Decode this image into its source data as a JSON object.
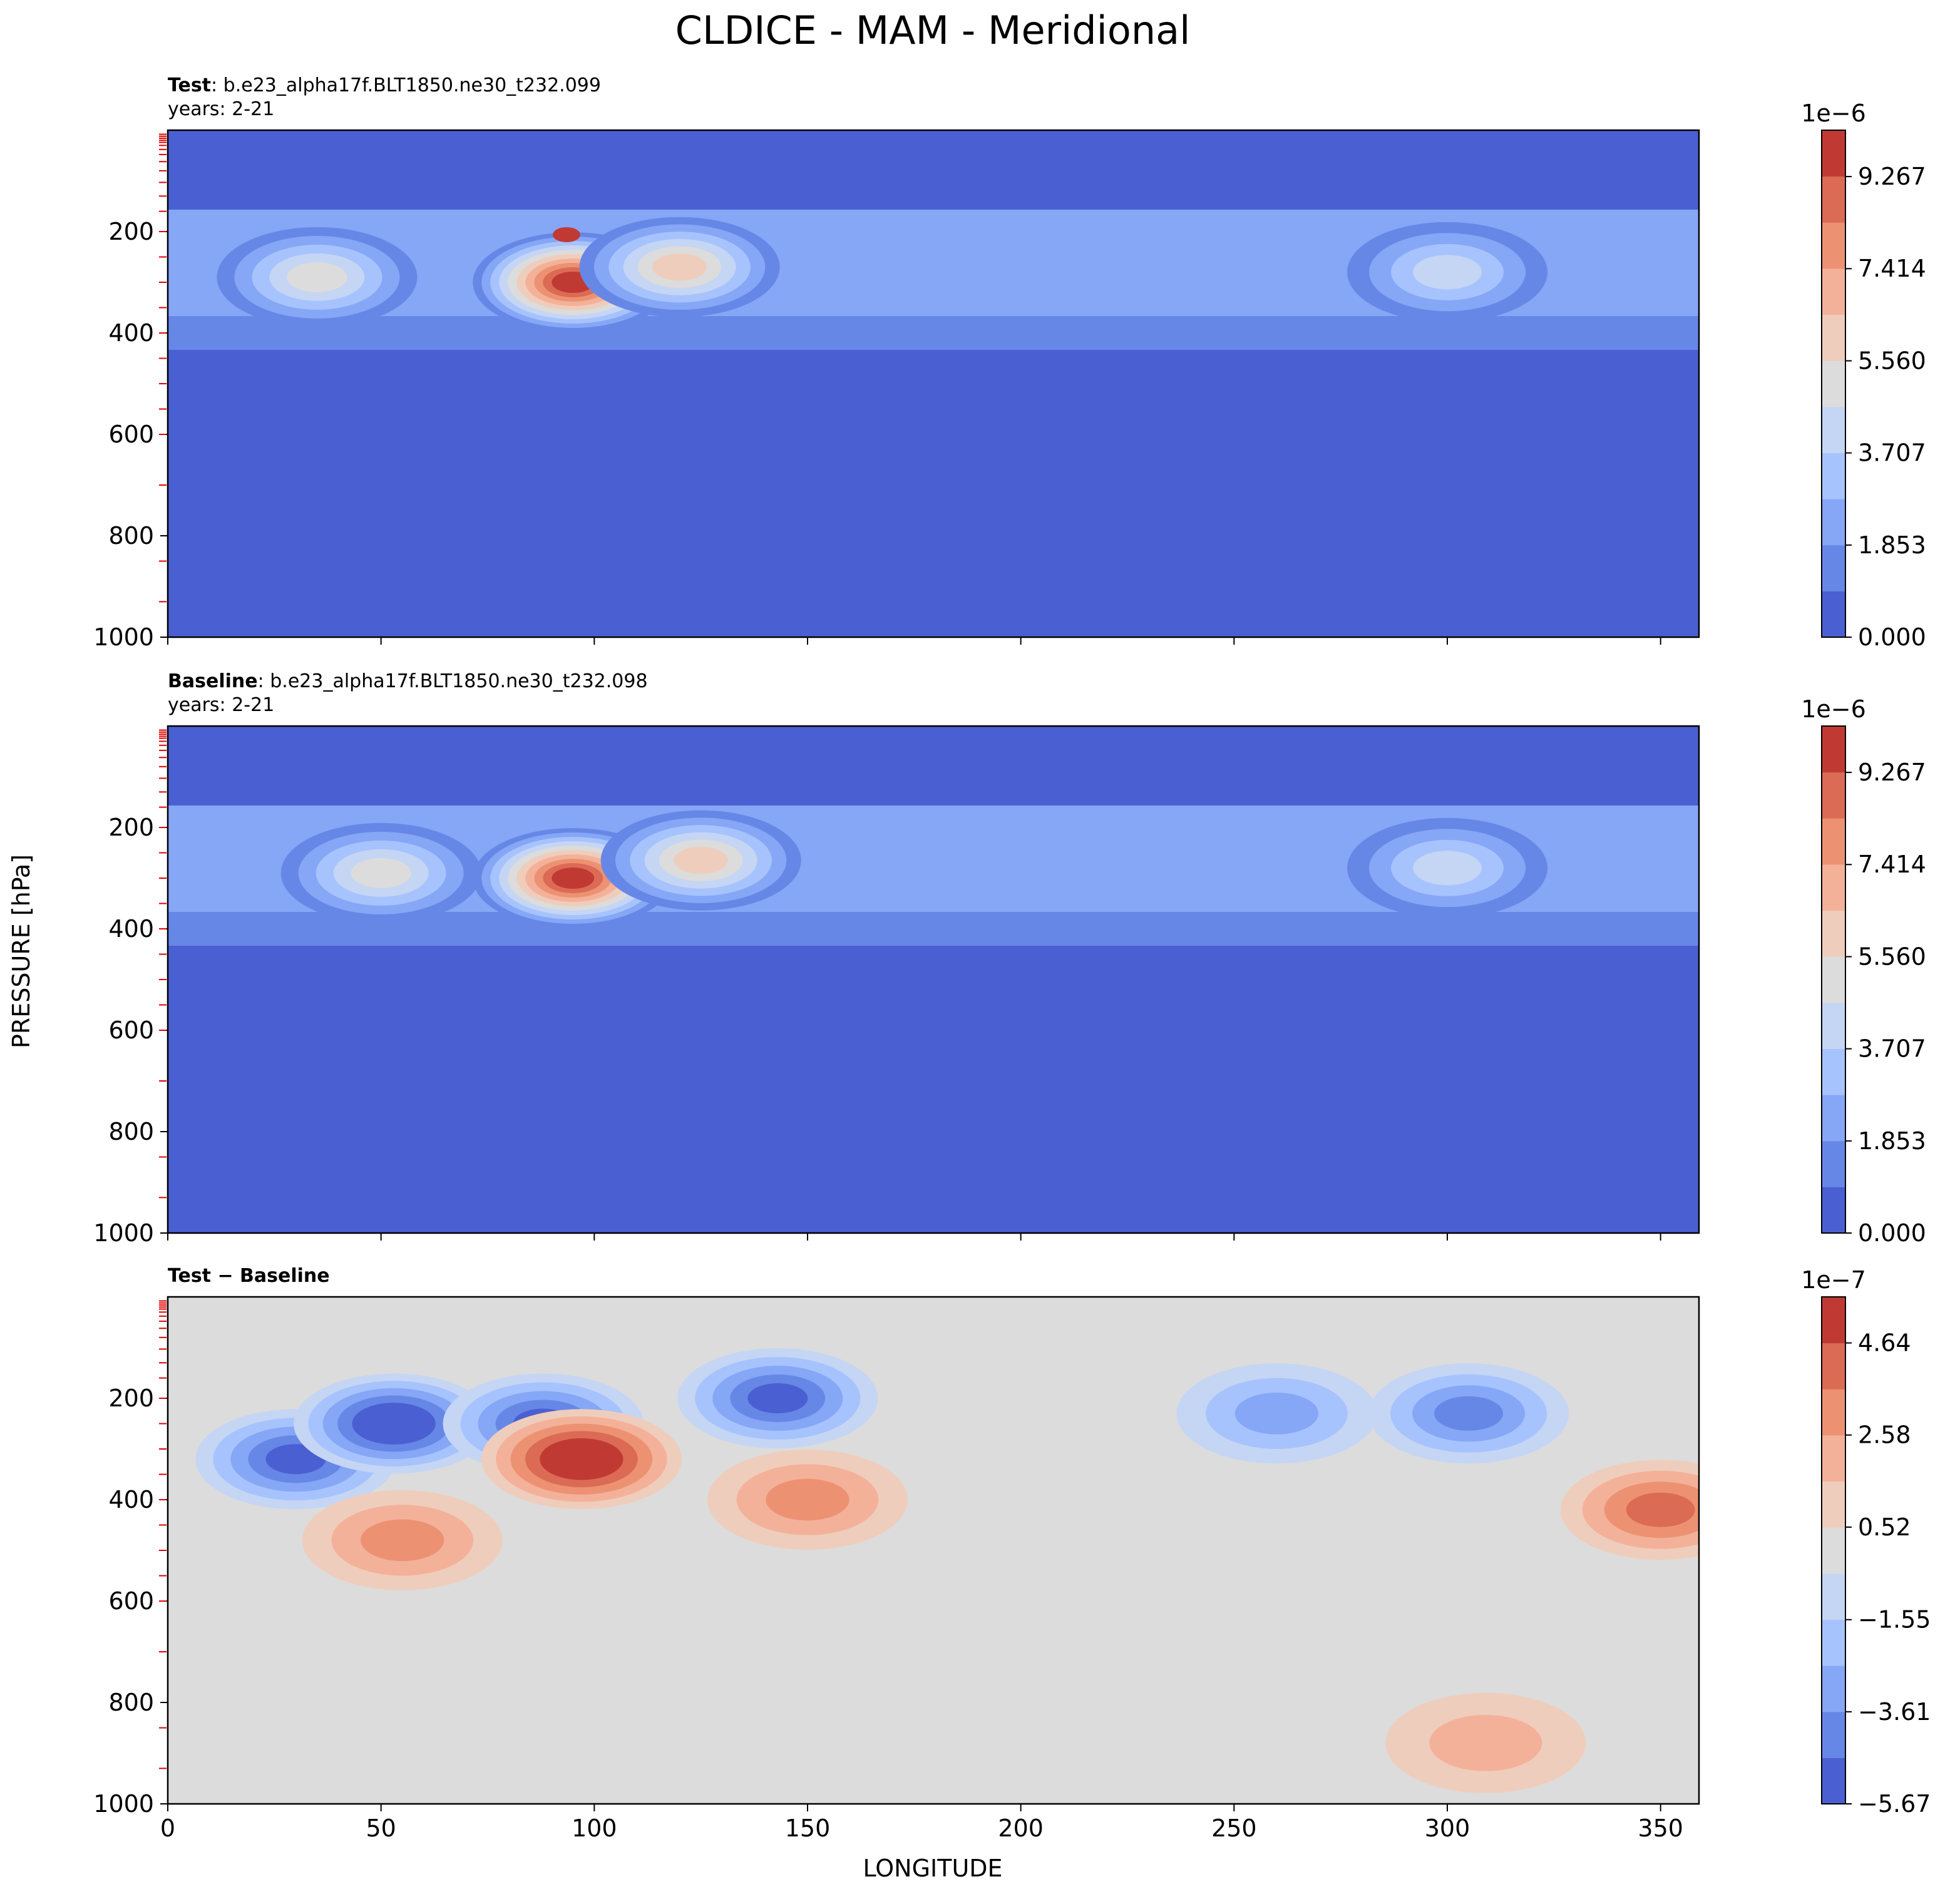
{
  "figure": {
    "title": "CLDICE - MAM - Meridional",
    "ylabel": "PRESSURE [hPa]",
    "xlabel": "LONGITUDE"
  },
  "chart_data": [
    {
      "type": "heatmap",
      "label_bold": "Test",
      "label_rest": ": b.e23_alpha17f.BLT1850.ne30_t232.099",
      "years": "years: 2-21",
      "xlim": [
        0,
        359
      ],
      "ylim": [
        1000,
        0
      ],
      "x_ticks": [
        0,
        50,
        100,
        150,
        200,
        250,
        300,
        350
      ],
      "y_ticks": [
        "200",
        "400",
        "600",
        "800",
        "1000"
      ],
      "colorbar": {
        "exponent": "1e−6",
        "min": 0,
        "max": 10.2,
        "ticks": [
          "0.000",
          "1.853",
          "3.707",
          "5.560",
          "7.414",
          "9.267"
        ],
        "tick_values": [
          0,
          1.853,
          3.707,
          5.56,
          7.414,
          9.267
        ],
        "levels": 11,
        "colors": [
          "#4a5fd1",
          "#6787e7",
          "#86a6f6",
          "#a6c3fd",
          "#c5d5f4",
          "#dcdcdc",
          "#efcdbc",
          "#f4b199",
          "#ec9272",
          "#db6b55",
          "#c03a33"
        ]
      },
      "features": [
        {
          "name": "tropopause ridge",
          "kind": "band",
          "lon_start": 0,
          "lon_end": 359,
          "top_hPa": 150,
          "bottom_hPa": 500,
          "value": 2.0
        },
        {
          "name": "main maximum",
          "kind": "blob",
          "lon": 95,
          "pressure_hPa": 300,
          "value": 9.6
        },
        {
          "name": "upper level ice belt",
          "kind": "blob",
          "lon": 120,
          "pressure_hPa": 270,
          "value": 5.8
        },
        {
          "name": "west maximum",
          "kind": "blob",
          "lon": 35,
          "pressure_hPa": 290,
          "value": 4.8
        },
        {
          "name": "east maximum",
          "kind": "blob",
          "lon": 300,
          "pressure_hPa": 280,
          "value": 4.2
        }
      ]
    },
    {
      "type": "heatmap",
      "label_bold": "Baseline",
      "label_rest": ": b.e23_alpha17f.BLT1850.ne30_t232.098",
      "years": "years: 2-21",
      "xlim": [
        0,
        359
      ],
      "ylim": [
        1000,
        0
      ],
      "x_ticks": [
        0,
        50,
        100,
        150,
        200,
        250,
        300,
        350
      ],
      "y_ticks": [
        "200",
        "400",
        "600",
        "800",
        "1000"
      ],
      "colorbar": {
        "exponent": "1e−6",
        "min": 0,
        "max": 10.2,
        "ticks": [
          "0.000",
          "1.853",
          "3.707",
          "5.560",
          "7.414",
          "9.267"
        ],
        "tick_values": [
          0,
          1.853,
          3.707,
          5.56,
          7.414,
          9.267
        ],
        "levels": 11,
        "colors": [
          "#4a5fd1",
          "#6787e7",
          "#86a6f6",
          "#a6c3fd",
          "#c5d5f4",
          "#dcdcdc",
          "#efcdbc",
          "#f4b199",
          "#ec9272",
          "#db6b55",
          "#c03a33"
        ]
      },
      "features": [
        {
          "name": "tropopause ridge",
          "kind": "band",
          "lon_start": 0,
          "lon_end": 359,
          "top_hPa": 150,
          "bottom_hPa": 500,
          "value": 2.0
        },
        {
          "name": "main maximum",
          "kind": "blob",
          "lon": 95,
          "pressure_hPa": 300,
          "value": 9.3
        },
        {
          "name": "upper level ice belt",
          "kind": "blob",
          "lon": 125,
          "pressure_hPa": 265,
          "value": 6.0
        },
        {
          "name": "west maximum",
          "kind": "blob",
          "lon": 50,
          "pressure_hPa": 290,
          "value": 5.2
        },
        {
          "name": "east maximum",
          "kind": "blob",
          "lon": 300,
          "pressure_hPa": 280,
          "value": 4.6
        }
      ]
    },
    {
      "type": "heatmap",
      "label_bold": "Test − Baseline",
      "label_rest": "",
      "years": "",
      "xlim": [
        0,
        359
      ],
      "ylim": [
        1000,
        0
      ],
      "x_ticks": [
        0,
        50,
        100,
        150,
        200,
        250,
        300,
        350
      ],
      "y_ticks": [
        "200",
        "400",
        "600",
        "800",
        "1000"
      ],
      "colorbar": {
        "exponent": "1e−7",
        "min": -5.67,
        "max": 5.67,
        "ticks": [
          "−5.67",
          "−3.61",
          "−1.55",
          "0.52",
          "2.58",
          "4.64"
        ],
        "tick_values": [
          -5.67,
          -3.61,
          -1.55,
          0.52,
          2.58,
          4.64
        ],
        "levels": 11,
        "colors": [
          "#4a5fd1",
          "#6787e7",
          "#86a6f6",
          "#a6c3fd",
          "#c5d5f4",
          "#dcdcdc",
          "#efcdbc",
          "#f4b199",
          "#ec9272",
          "#db6b55",
          "#c03a33"
        ]
      },
      "features": [
        {
          "name": "neg anomaly 30E",
          "kind": "blob",
          "lon": 30,
          "pressure_hPa": 320,
          "value": -4.5
        },
        {
          "name": "neg anomaly 55E",
          "kind": "blob",
          "lon": 53,
          "pressure_hPa": 250,
          "value": -5.2
        },
        {
          "name": "neg anomaly 90E",
          "kind": "blob",
          "lon": 88,
          "pressure_hPa": 250,
          "value": -4.6
        },
        {
          "name": "pos anomaly 97E",
          "kind": "blob",
          "lon": 97,
          "pressure_hPa": 320,
          "value": 4.8
        },
        {
          "name": "neg anomaly 143E",
          "kind": "blob",
          "lon": 143,
          "pressure_hPa": 200,
          "value": -3.8
        },
        {
          "name": "pos anomaly 150E",
          "kind": "blob",
          "lon": 150,
          "pressure_hPa": 400,
          "value": 1.8
        },
        {
          "name": "pos anomaly 55E low",
          "kind": "blob",
          "lon": 55,
          "pressure_hPa": 480,
          "value": 1.6
        },
        {
          "name": "neg anomaly 260E",
          "kind": "blob",
          "lon": 260,
          "pressure_hPa": 230,
          "value": -2.5
        },
        {
          "name": "neg anomaly 305E",
          "kind": "blob",
          "lon": 305,
          "pressure_hPa": 230,
          "value": -3.2
        },
        {
          "name": "pos anomaly 350E",
          "kind": "blob",
          "lon": 350,
          "pressure_hPa": 420,
          "value": 3.2
        },
        {
          "name": "pos anomaly 310E surface",
          "kind": "blob",
          "lon": 309,
          "pressure_hPa": 880,
          "value": 1.4
        }
      ]
    }
  ]
}
